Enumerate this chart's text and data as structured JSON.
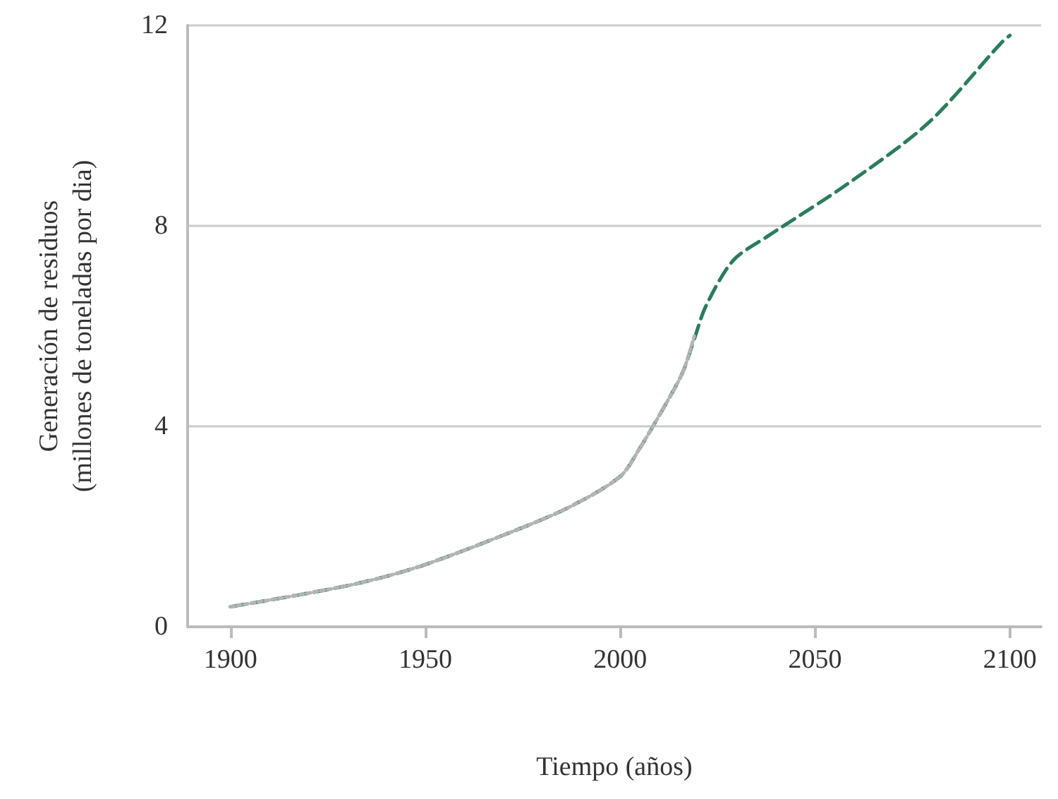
{
  "chart_data": {
    "type": "line",
    "xlabel": "Tiempo (años)",
    "ylabel": "Generación de residuos\n(millones de toneladas por dia)",
    "xlim": [
      1889,
      2108
    ],
    "xticks": [
      1900,
      1950,
      2000,
      2050,
      2100
    ],
    "ylim": [
      0,
      12
    ],
    "yticks": [
      0,
      4,
      8,
      12
    ],
    "grid": "y",
    "marker": "none",
    "series": [
      {
        "color": "#2a7d5a",
        "line_style": "dashed",
        "x": [
          1900,
          1930,
          1948,
          1972,
          1987,
          2000,
          2005,
          2011,
          2016,
          2019,
          2022,
          2029,
          2038,
          2058,
          2079,
          2098,
          2100
        ],
        "values": [
          0.4,
          0.82,
          1.19,
          1.89,
          2.39,
          3.0,
          3.56,
          4.35,
          5.07,
          5.74,
          6.4,
          7.31,
          7.8,
          8.82,
          10.05,
          11.67,
          11.8
        ]
      },
      {
        "color": "#b4b4b4",
        "line_style": "dotted",
        "x": [
          1900,
          1930,
          1948,
          1972,
          1987,
          2000,
          2005,
          2011,
          2016,
          2019
        ],
        "values": [
          0.4,
          0.82,
          1.19,
          1.89,
          2.39,
          3.0,
          3.56,
          4.35,
          5.07,
          5.8
        ]
      }
    ]
  }
}
